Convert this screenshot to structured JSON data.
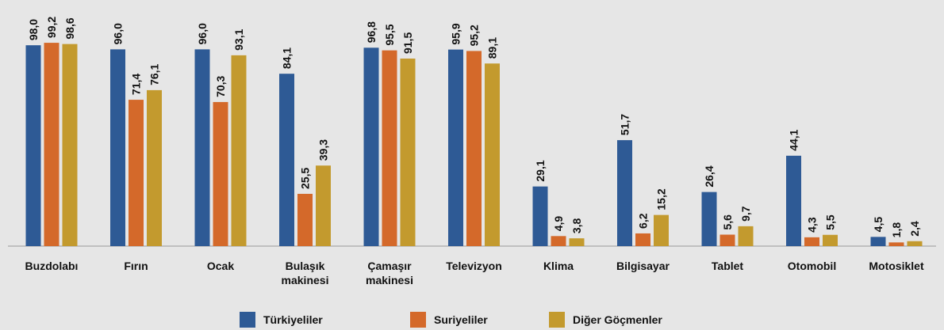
{
  "chart_data": {
    "type": "bar",
    "categories": [
      "Buzdolabı",
      "Fırın",
      "Ocak",
      "Bulaşık makinesi",
      "Çamaşır makinesi",
      "Televizyon",
      "Klima",
      "Bilgisayar",
      "Tablet",
      "Otomobil",
      "Motosiklet"
    ],
    "series": [
      {
        "name": "Türkiyeliler",
        "color": "#2e5a95",
        "values": [
          98.0,
          96.0,
          96.0,
          84.1,
          96.8,
          95.9,
          29.1,
          51.7,
          26.4,
          44.1,
          4.5
        ],
        "value_labels": [
          "98,0",
          "96,0",
          "96,0",
          "84,1",
          "96,8",
          "95,9",
          "29,1",
          "51,7",
          "26,4",
          "44,1",
          "4,5"
        ]
      },
      {
        "name": "Suriyeliler",
        "color": "#d4692a",
        "values": [
          99.2,
          71.4,
          70.3,
          25.5,
          95.5,
          95.2,
          4.9,
          6.2,
          5.6,
          4.3,
          1.8
        ],
        "value_labels": [
          "99,2",
          "71,4",
          "70,3",
          "25,5",
          "95,5",
          "95,2",
          "4,9",
          "6,2",
          "5,6",
          "4,3",
          "1,8"
        ]
      },
      {
        "name": "Diğer Göçmenler",
        "color": "#c39a2e",
        "values": [
          98.6,
          76.1,
          93.1,
          39.3,
          91.5,
          89.1,
          3.8,
          15.2,
          9.7,
          5.5,
          2.4
        ],
        "value_labels": [
          "98,6",
          "76,1",
          "93,1",
          "39,3",
          "91,5",
          "89,1",
          "3,8",
          "15,2",
          "9,7",
          "5,5",
          "2,4"
        ]
      }
    ],
    "legend": "bottom"
  }
}
